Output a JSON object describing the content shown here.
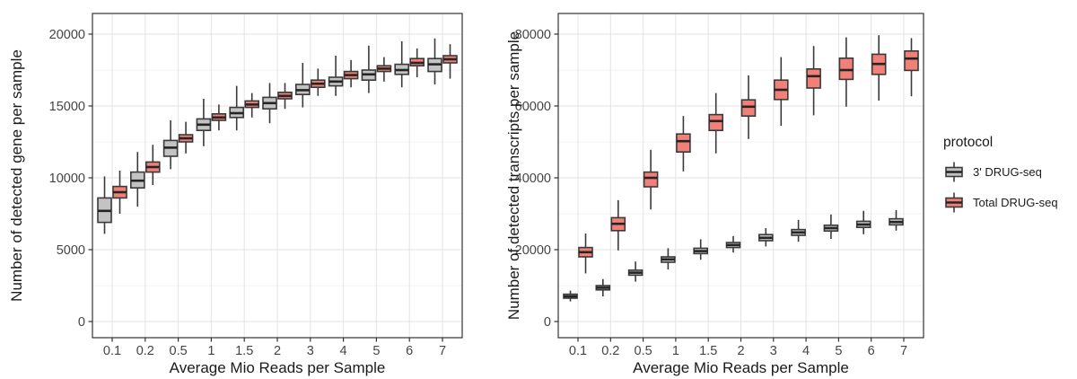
{
  "figure": {
    "background": "#ffffff"
  },
  "style": {
    "box_border": "#3a3a3a",
    "median_color": "#252525",
    "grid_major": "#e3e3e3",
    "grid_minor": "#f1f1f1",
    "panel_border": "#333333",
    "panel_fill": "#ffffff",
    "tick_text_color": "#444444",
    "axis_title_color": "#1a1a1a",
    "tick_mark_color": "#333333"
  },
  "legend": {
    "title": "protocol",
    "position": "right",
    "items": [
      {
        "label": "3' DRUG-seq",
        "color": "#c3c3c3"
      },
      {
        "label": "Total DRUG-seq",
        "color": "#f08078"
      }
    ]
  },
  "chart_data": [
    {
      "type": "boxplot",
      "panel": "left",
      "xlabel": "Average Mio Reads per Sample",
      "ylabel": "Number of detected gene per sample",
      "categories": [
        "0.1",
        "0.2",
        "0.5",
        "1",
        "1.5",
        "2",
        "3",
        "4",
        "5",
        "6",
        "7"
      ],
      "yticks": [
        0,
        5000,
        10000,
        15000,
        20000
      ],
      "ytick_labels": [
        "0",
        "5000",
        "10000",
        "15000",
        "20000"
      ],
      "ylim": [
        0,
        21400
      ],
      "grid": true,
      "box_values_format": "[whisker_low, q1, median, q3, whisker_high]",
      "series": [
        {
          "name": "3' DRUG-seq",
          "color": "#c3c3c3",
          "boxes": [
            [
              6100,
              6900,
              7700,
              8600,
              10100
            ],
            [
              8000,
              9300,
              9800,
              10400,
              11800
            ],
            [
              10600,
              11500,
              12100,
              12600,
              14000
            ],
            [
              12200,
              13300,
              13700,
              14100,
              15500
            ],
            [
              13300,
              14200,
              14500,
              14900,
              16400
            ],
            [
              13800,
              14800,
              15200,
              15600,
              16600
            ],
            [
              14900,
              15800,
              16100,
              16500,
              18000
            ],
            [
              15700,
              16400,
              16700,
              17000,
              18500
            ],
            [
              15900,
              16800,
              17200,
              17500,
              19200
            ],
            [
              16300,
              17200,
              17500,
              17900,
              19500
            ],
            [
              16500,
              17400,
              17900,
              18300,
              19700
            ]
          ]
        },
        {
          "name": "Total DRUG-seq",
          "color": "#f08078",
          "boxes": [
            [
              7500,
              8600,
              9000,
              9400,
              10500
            ],
            [
              9500,
              10400,
              10750,
              11100,
              12300
            ],
            [
              11700,
              12500,
              12750,
              13000,
              13900
            ],
            [
              13300,
              14000,
              14200,
              14450,
              15100
            ],
            [
              14200,
              14900,
              15100,
              15350,
              15900
            ],
            [
              14800,
              15500,
              15700,
              15950,
              16600
            ],
            [
              15700,
              16300,
              16550,
              16800,
              17600
            ],
            [
              16300,
              16900,
              17150,
              17400,
              18200
            ],
            [
              16700,
              17400,
              17600,
              17800,
              18400
            ],
            [
              17000,
              17800,
              18000,
              18300,
              19000
            ],
            [
              16900,
              18000,
              18250,
              18500,
              19300
            ]
          ]
        }
      ]
    },
    {
      "type": "boxplot",
      "panel": "right",
      "xlabel": "Average Mio Reads per Sample",
      "ylabel": "Number of detected transcripts per sample",
      "categories": [
        "0.1",
        "0.2",
        "0.5",
        "1",
        "1.5",
        "2",
        "3",
        "4",
        "5",
        "6",
        "7"
      ],
      "yticks": [
        0,
        20000,
        40000,
        60000,
        80000
      ],
      "ytick_labels": [
        "0",
        "20000",
        "40000",
        "60000",
        "80000"
      ],
      "ylim": [
        0,
        85600
      ],
      "grid": true,
      "box_values_format": "[whisker_low, q1, median, q3, whisker_high]",
      "series": [
        {
          "name": "3' DRUG-seq",
          "color": "#c3c3c3",
          "boxes": [
            [
              5600,
              6500,
              7000,
              7600,
              8600
            ],
            [
              7000,
              8800,
              9400,
              10000,
              11800
            ],
            [
              11100,
              12900,
              13600,
              14300,
              16700
            ],
            [
              14500,
              16500,
              17300,
              18000,
              20400
            ],
            [
              17200,
              18900,
              19600,
              20400,
              22900
            ],
            [
              19200,
              20600,
              21300,
              22000,
              23800
            ],
            [
              20900,
              22500,
              23300,
              24200,
              26000
            ],
            [
              22200,
              24000,
              24800,
              25600,
              28300
            ],
            [
              23000,
              25200,
              26000,
              26800,
              29800
            ],
            [
              24300,
              26200,
              27000,
              27900,
              30800
            ],
            [
              25300,
              26900,
              27700,
              28600,
              31000
            ]
          ]
        },
        {
          "name": "Total DRUG-seq",
          "color": "#f08078",
          "boxes": [
            [
              13400,
              18000,
              19300,
              20600,
              24500
            ],
            [
              19800,
              25300,
              27200,
              28900,
              33800
            ],
            [
              31200,
              37500,
              40000,
              41600,
              47800
            ],
            [
              41800,
              47200,
              50200,
              52200,
              57200
            ],
            [
              46800,
              53200,
              55800,
              57600,
              63600
            ],
            [
              50800,
              57200,
              59800,
              61700,
              68500
            ],
            [
              54500,
              61800,
              64500,
              67200,
              73600
            ],
            [
              57400,
              65000,
              68300,
              70300,
              76700
            ],
            [
              59800,
              67400,
              70000,
              73300,
              79100
            ],
            [
              61500,
              68800,
              71700,
              74400,
              79700
            ],
            [
              62700,
              69900,
              73200,
              75300,
              78900
            ]
          ]
        }
      ]
    }
  ]
}
